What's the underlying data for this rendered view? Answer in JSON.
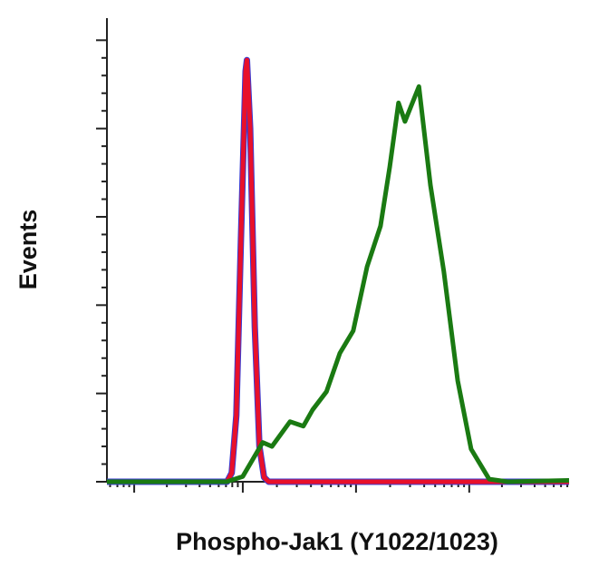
{
  "chart_data": {
    "type": "line",
    "x_label": "Phospho-Jak1 (Y1022/1023)",
    "y_label": "Events",
    "xlim": [
      0,
      100
    ],
    "ylim": [
      0,
      105
    ],
    "x_log_minor": true,
    "xticks": [
      5.9,
      29.4,
      53.9,
      78.4
    ],
    "yticks": [
      0,
      20,
      40,
      60,
      80,
      100
    ],
    "series": [
      {
        "color": "#3a3ad0",
        "x": [
          0,
          26,
          27,
          28,
          29,
          30,
          30.3,
          31,
          32,
          33,
          34,
          35,
          100
        ],
        "values": [
          0,
          0,
          2,
          15,
          55,
          93,
          95.5,
          80,
          35,
          8,
          1,
          0,
          0
        ]
      },
      {
        "color": "#e8102a",
        "x": [
          0,
          26,
          27,
          28,
          29,
          30,
          30.3,
          31,
          32,
          33,
          34,
          35,
          100
        ],
        "values": [
          0,
          0,
          2,
          15,
          55,
          93,
          95.5,
          80,
          35,
          8,
          1,
          0,
          0
        ]
      },
      {
        "color": "#1a7a12",
        "x": [
          0,
          25.9,
          29.4,
          33.7,
          35.7,
          39.6,
          42.5,
          44.5,
          47.5,
          50.4,
          53.3,
          56.3,
          59.2,
          61.2,
          63.1,
          64.5,
          67.5,
          70,
          72.9,
          75.9,
          78.8,
          82.7,
          86.7,
          100
        ],
        "values": [
          0,
          0,
          1.2,
          8.9,
          8,
          13.6,
          12.6,
          16.3,
          20.4,
          29.1,
          34.2,
          48.7,
          57.9,
          71.3,
          85.8,
          81.6,
          89.5,
          67.2,
          47.6,
          22.9,
          7.4,
          0.6,
          0,
          0.3
        ]
      }
    ]
  }
}
